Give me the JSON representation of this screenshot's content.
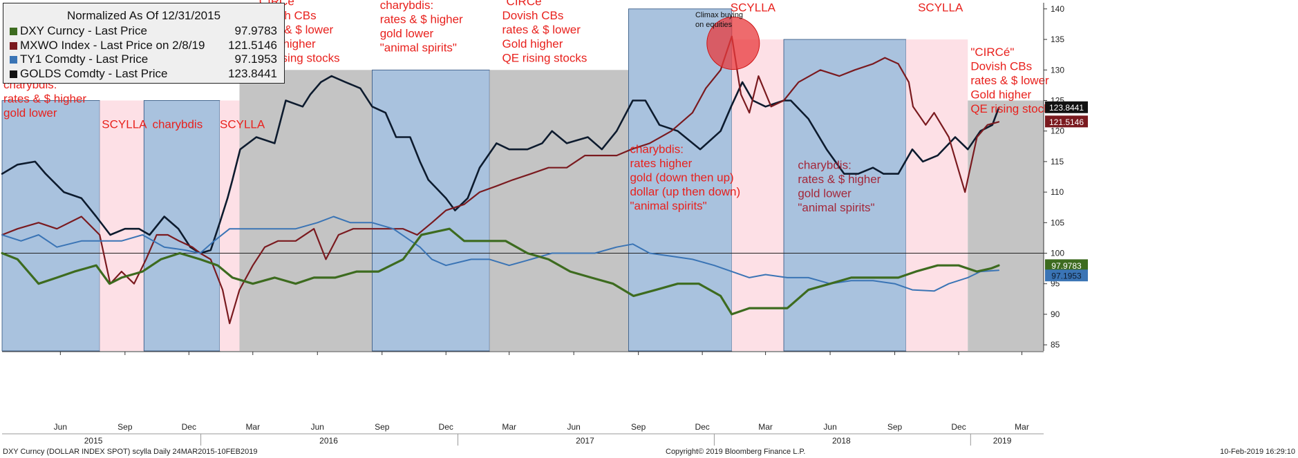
{
  "legend": {
    "title": "Normalized As Of 12/31/2015",
    "items": [
      {
        "label": "DXY Curncy - Last Price",
        "value": "97.9783",
        "color": "#3d6b1f"
      },
      {
        "label": "MXWO Index - Last Price on 2/8/19",
        "value": "121.5146",
        "color": "#7a1a1f"
      },
      {
        "label": "TY1 Comdty - Last Price",
        "value": "97.1953",
        "color": "#3a74b5"
      },
      {
        "label": "GOLDS Comdty - Last Price",
        "value": "123.8441",
        "color": "#0d1b2e"
      }
    ]
  },
  "footer": {
    "left": "DXY Curncy (DOLLAR INDEX SPOT) scylla  Daily 24MAR2015-10FEB2019",
    "center": "Copyright© 2019 Bloomberg Finance L.P.",
    "right": "10-Feb-2019 16:29:10"
  },
  "colors": {
    "blue_regime": "#a9c2de",
    "pink_regime": "#fde0e6",
    "grey_regime": "#c4c4c4",
    "annotation_red": "#e8211d",
    "annotation_dark": "#a3283a",
    "climax_circle": "#e8393c"
  },
  "chart_data": {
    "type": "line",
    "title": "",
    "xlabel": "",
    "ylabel": "",
    "x_range": [
      "2015-03-24",
      "2019-04-15"
    ],
    "ylim": [
      84,
      141
    ],
    "y_ticks": [
      85,
      90,
      95,
      100,
      105,
      110,
      115,
      120,
      125,
      130,
      135,
      140
    ],
    "reference_line": 100,
    "x_month_ticks": [
      "Jun",
      "Sep",
      "Dec",
      "Mar",
      "Jun",
      "Sep",
      "Dec",
      "Mar",
      "Jun",
      "Sep",
      "Dec",
      "Mar",
      "Jun",
      "Sep",
      "Dec",
      "Mar"
    ],
    "x_month_dates": [
      "2015-06-15",
      "2015-09-15",
      "2015-12-15",
      "2016-03-15",
      "2016-06-15",
      "2016-09-15",
      "2016-12-15",
      "2017-03-15",
      "2017-06-15",
      "2017-09-15",
      "2017-12-15",
      "2018-03-15",
      "2018-06-15",
      "2018-09-15",
      "2018-12-15",
      "2019-03-15"
    ],
    "x_year_ticks": [
      "2015",
      "2016",
      "2017",
      "2018",
      "2019"
    ],
    "x_year_dates": [
      "2015-08-01",
      "2016-07-01",
      "2017-07-01",
      "2018-07-01",
      "2019-02-15"
    ],
    "end_labels": [
      {
        "text": "123.8441",
        "y": 123.84,
        "bg": "#111111",
        "fg": "#ffffff"
      },
      {
        "text": "121.5146",
        "y": 121.51,
        "bg": "#7a1a1f",
        "fg": "#ffffff"
      },
      {
        "text": "97.9783",
        "y": 97.98,
        "bg": "#3d6b1f",
        "fg": "#ffffff"
      },
      {
        "text": "97.1953",
        "y": 96.3,
        "bg": "#3a74b5",
        "fg": "#0d1b2e"
      }
    ],
    "regimes": [
      {
        "kind": "blue",
        "start": "2015-03-24",
        "end": "2015-08-10",
        "top": 125
      },
      {
        "kind": "pink",
        "start": "2015-08-10",
        "end": "2015-10-12",
        "top": 125
      },
      {
        "kind": "blue",
        "start": "2015-10-12",
        "end": "2016-01-28",
        "top": 125
      },
      {
        "kind": "pink",
        "start": "2016-01-28",
        "end": "2016-02-25",
        "top": 125
      },
      {
        "kind": "grey",
        "start": "2016-02-25",
        "end": "2016-09-01",
        "top": 130
      },
      {
        "kind": "blue",
        "start": "2016-09-01",
        "end": "2017-02-15",
        "top": 130
      },
      {
        "kind": "grey",
        "start": "2017-02-15",
        "end": "2017-09-01",
        "top": 130
      },
      {
        "kind": "blue",
        "start": "2017-09-01",
        "end": "2018-01-26",
        "top": 140
      },
      {
        "kind": "pink",
        "start": "2018-01-26",
        "end": "2018-04-10",
        "top": 135
      },
      {
        "kind": "blue",
        "start": "2018-04-10",
        "end": "2018-10-01",
        "top": 135
      },
      {
        "kind": "pink",
        "start": "2018-10-01",
        "end": "2018-12-28",
        "top": 135
      },
      {
        "kind": "grey",
        "start": "2018-12-28",
        "end": "2019-04-15",
        "top": 125
      }
    ],
    "series": [
      {
        "name": "GOLDS Comdty",
        "color": "#0d1b2e",
        "x": [
          "2015-03-24",
          "2015-04-15",
          "2015-05-10",
          "2015-05-25",
          "2015-06-20",
          "2015-07-15",
          "2015-08-05",
          "2015-08-25",
          "2015-09-15",
          "2015-10-05",
          "2015-10-20",
          "2015-11-10",
          "2015-11-30",
          "2015-12-17",
          "2015-12-31",
          "2016-01-15",
          "2016-01-28",
          "2016-02-08",
          "2016-02-15",
          "2016-02-26",
          "2016-03-20",
          "2016-04-15",
          "2016-05-01",
          "2016-05-25",
          "2016-06-05",
          "2016-06-20",
          "2016-07-05",
          "2016-07-25",
          "2016-08-15",
          "2016-09-01",
          "2016-09-20",
          "2016-10-05",
          "2016-10-25",
          "2016-11-08",
          "2016-11-20",
          "2016-12-15",
          "2016-12-28",
          "2017-01-15",
          "2017-02-01",
          "2017-02-25",
          "2017-03-15",
          "2017-04-10",
          "2017-05-01",
          "2017-05-15",
          "2017-06-05",
          "2017-07-05",
          "2017-07-25",
          "2017-08-15",
          "2017-09-07",
          "2017-09-25",
          "2017-10-15",
          "2017-11-10",
          "2017-12-12",
          "2018-01-10",
          "2018-01-25",
          "2018-02-10",
          "2018-02-25",
          "2018-03-15",
          "2018-04-10",
          "2018-04-20",
          "2018-05-15",
          "2018-06-10",
          "2018-07-05",
          "2018-07-25",
          "2018-08-15",
          "2018-08-30",
          "2018-09-20",
          "2018-10-10",
          "2018-10-25",
          "2018-11-15",
          "2018-12-10",
          "2018-12-28",
          "2019-01-15",
          "2019-02-01",
          "2019-02-10"
        ],
        "values": [
          113,
          114.5,
          115,
          113,
          110,
          109,
          106,
          103,
          104,
          104,
          103,
          106,
          104,
          101,
          100,
          100.5,
          105,
          109,
          112,
          117,
          119,
          118,
          125,
          124,
          126,
          128,
          129,
          128,
          127,
          124,
          123,
          119,
          119,
          115,
          112,
          109,
          107,
          109,
          114,
          118,
          117,
          117,
          118,
          120,
          118,
          119,
          117,
          120,
          125,
          125,
          121,
          120,
          117,
          120,
          124,
          128,
          125,
          124,
          125,
          125,
          122,
          117,
          113,
          113,
          114,
          113,
          113,
          117,
          115,
          116,
          119,
          117,
          120,
          121,
          123.8
        ]
      },
      {
        "name": "MXWO Index",
        "color": "#7a1a1f",
        "x": [
          "2015-03-24",
          "2015-04-15",
          "2015-05-15",
          "2015-06-10",
          "2015-07-15",
          "2015-08-10",
          "2015-08-25",
          "2015-09-10",
          "2015-09-28",
          "2015-10-15",
          "2015-10-30",
          "2015-11-15",
          "2015-12-01",
          "2015-12-20",
          "2015-12-31",
          "2016-01-15",
          "2016-02-01",
          "2016-02-11",
          "2016-02-25",
          "2016-03-15",
          "2016-04-01",
          "2016-04-20",
          "2016-05-15",
          "2016-06-10",
          "2016-06-27",
          "2016-07-15",
          "2016-08-05",
          "2016-09-01",
          "2016-09-20",
          "2016-10-15",
          "2016-11-04",
          "2016-11-25",
          "2016-12-15",
          "2017-01-10",
          "2017-02-01",
          "2017-02-25",
          "2017-03-20",
          "2017-04-15",
          "2017-05-10",
          "2017-06-05",
          "2017-07-01",
          "2017-07-25",
          "2017-08-15",
          "2017-09-05",
          "2017-10-01",
          "2017-11-01",
          "2017-12-01",
          "2017-12-20",
          "2018-01-10",
          "2018-01-26",
          "2018-02-08",
          "2018-02-20",
          "2018-03-05",
          "2018-03-23",
          "2018-04-10",
          "2018-05-01",
          "2018-06-01",
          "2018-06-28",
          "2018-07-20",
          "2018-08-15",
          "2018-09-01",
          "2018-09-20",
          "2018-10-05",
          "2018-10-11",
          "2018-10-29",
          "2018-11-10",
          "2018-12-01",
          "2018-12-24",
          "2019-01-10",
          "2019-01-25",
          "2019-02-10"
        ],
        "values": [
          103,
          104,
          105,
          104,
          106,
          103,
          95,
          97,
          95,
          99,
          103,
          103,
          102,
          101,
          100,
          99,
          94,
          88.5,
          94,
          98,
          101,
          102,
          102,
          104,
          99,
          103,
          104,
          104,
          104,
          104,
          103,
          105,
          107,
          108,
          110,
          111,
          112,
          113,
          114,
          114,
          116,
          116,
          116,
          117,
          118,
          120,
          123,
          127,
          130,
          135.5,
          126,
          123,
          129,
          124,
          125,
          128,
          130,
          129,
          130,
          131,
          132,
          131,
          128,
          124,
          121,
          123,
          119,
          110,
          119,
          121,
          121.5
        ]
      },
      {
        "name": "TY1 Comdty",
        "color": "#3a74b5",
        "x": [
          "2015-03-24",
          "2015-04-20",
          "2015-05-15",
          "2015-06-10",
          "2015-07-15",
          "2015-08-10",
          "2015-09-10",
          "2015-10-10",
          "2015-11-10",
          "2015-12-10",
          "2015-12-31",
          "2016-01-20",
          "2016-02-11",
          "2016-03-15",
          "2016-04-15",
          "2016-05-15",
          "2016-06-15",
          "2016-07-08",
          "2016-08-01",
          "2016-09-01",
          "2016-10-01",
          "2016-11-08",
          "2016-11-25",
          "2016-12-15",
          "2017-01-20",
          "2017-02-15",
          "2017-03-15",
          "2017-04-15",
          "2017-05-15",
          "2017-06-15",
          "2017-07-15",
          "2017-08-15",
          "2017-09-07",
          "2017-10-01",
          "2017-11-01",
          "2017-12-01",
          "2018-01-01",
          "2018-01-26",
          "2018-02-20",
          "2018-03-15",
          "2018-04-15",
          "2018-05-15",
          "2018-06-15",
          "2018-07-15",
          "2018-08-15",
          "2018-09-15",
          "2018-10-10",
          "2018-11-10",
          "2018-12-01",
          "2018-12-28",
          "2019-01-15",
          "2019-02-10"
        ],
        "values": [
          103,
          102,
          103,
          101,
          102,
          102,
          102,
          103,
          101,
          100.5,
          100,
          102,
          104,
          104,
          104,
          104,
          105,
          106,
          105,
          105,
          104,
          101,
          99,
          98,
          99,
          99,
          98,
          99,
          100,
          100,
          100,
          101,
          101.5,
          100,
          99.5,
          99,
          98,
          97,
          96,
          96.5,
          96,
          96,
          95,
          95.5,
          95.5,
          95,
          94,
          93.8,
          95,
          96,
          97,
          97.2
        ]
      },
      {
        "name": "DXY Curncy",
        "color": "#3d6b1f",
        "x": [
          "2015-03-24",
          "2015-04-15",
          "2015-05-15",
          "2015-06-10",
          "2015-07-05",
          "2015-08-05",
          "2015-08-24",
          "2015-09-10",
          "2015-10-10",
          "2015-11-05",
          "2015-12-02",
          "2015-12-31",
          "2016-01-25",
          "2016-02-15",
          "2016-03-15",
          "2016-04-15",
          "2016-05-15",
          "2016-06-10",
          "2016-07-10",
          "2016-08-10",
          "2016-09-10",
          "2016-10-15",
          "2016-11-10",
          "2016-12-20",
          "2017-01-10",
          "2017-02-10",
          "2017-03-10",
          "2017-04-10",
          "2017-05-10",
          "2017-06-10",
          "2017-07-10",
          "2017-08-10",
          "2017-09-08",
          "2017-10-10",
          "2017-11-10",
          "2017-12-10",
          "2018-01-10",
          "2018-01-26",
          "2018-02-20",
          "2018-03-20",
          "2018-04-15",
          "2018-05-15",
          "2018-06-15",
          "2018-07-15",
          "2018-08-15",
          "2018-09-20",
          "2018-10-15",
          "2018-11-15",
          "2018-12-15",
          "2019-01-10",
          "2019-01-30",
          "2019-02-10"
        ],
        "values": [
          100,
          99,
          95,
          96,
          97,
          98,
          95,
          96,
          97,
          99,
          100,
          99,
          98,
          96,
          95,
          96,
          95,
          96,
          96,
          97,
          97,
          99,
          103,
          104,
          102,
          102,
          102,
          100,
          99,
          97,
          96,
          95,
          93,
          94,
          95,
          95,
          93,
          90,
          91,
          91,
          91,
          94,
          95,
          96,
          96,
          96,
          97,
          98,
          98,
          97,
          97.5,
          98
        ]
      }
    ],
    "annotations": [
      {
        "lines": [
          "charybdis:",
          "rates & $ higher",
          "gold lower"
        ],
        "date": "2015-03-26",
        "y": 127,
        "color": "red"
      },
      {
        "lines": [
          "SCYLLA"
        ],
        "date": "2015-08-13",
        "y": 120.5,
        "color": "red"
      },
      {
        "lines": [
          "charybdis"
        ],
        "date": "2015-10-24",
        "y": 120.5,
        "color": "red"
      },
      {
        "lines": [
          "SCYLLA"
        ],
        "date": "2016-01-28",
        "y": 120.5,
        "color": "red"
      },
      {
        "lines": [
          "\"CIRCé\"",
          "Dovish CBs",
          "rates & $ lower",
          "Gold higher",
          "QE rising stocks"
        ],
        "date": "2016-03-18",
        "y": 140.6,
        "color": "red"
      },
      {
        "lines": [
          "charybdis:",
          "rates & $ higher",
          "gold lower",
          "\"animal spirits\""
        ],
        "date": "2016-09-12",
        "y": 140,
        "color": "red"
      },
      {
        "lines": [
          "\"CIRCé\"",
          "Dovish CBs",
          "rates & $ lower",
          "Gold higher",
          "QE rising stocks"
        ],
        "date": "2017-03-05",
        "y": 140.6,
        "color": "red"
      },
      {
        "lines": [
          "Climax buying",
          "on equities"
        ],
        "date": "2017-12-05",
        "y": 138.6,
        "color": "black"
      },
      {
        "lines": [
          "SCYLLA"
        ],
        "date": "2018-01-24",
        "y": 139.6,
        "color": "red"
      },
      {
        "lines": [
          "SCYLLA"
        ],
        "date": "2018-10-18",
        "y": 139.6,
        "color": "red"
      },
      {
        "lines": [
          "\"CIRCé\"",
          "Dovish CBs",
          "rates & $ lower",
          "Gold higher",
          "QE rising stocks"
        ],
        "date": "2019-01-01",
        "y": 132.3,
        "color": "red"
      },
      {
        "lines": [
          "charybdis:",
          "rates higher",
          "gold (down then up)",
          "dollar (up then down)",
          "\"animal spirits\""
        ],
        "date": "2017-09-03",
        "y": 116.4,
        "color": "red"
      },
      {
        "lines": [
          "charybdis:",
          "rates & $ higher",
          "gold lower",
          "\"animal spirits\""
        ],
        "date": "2018-04-30",
        "y": 113.8,
        "color": "dark"
      }
    ]
  }
}
